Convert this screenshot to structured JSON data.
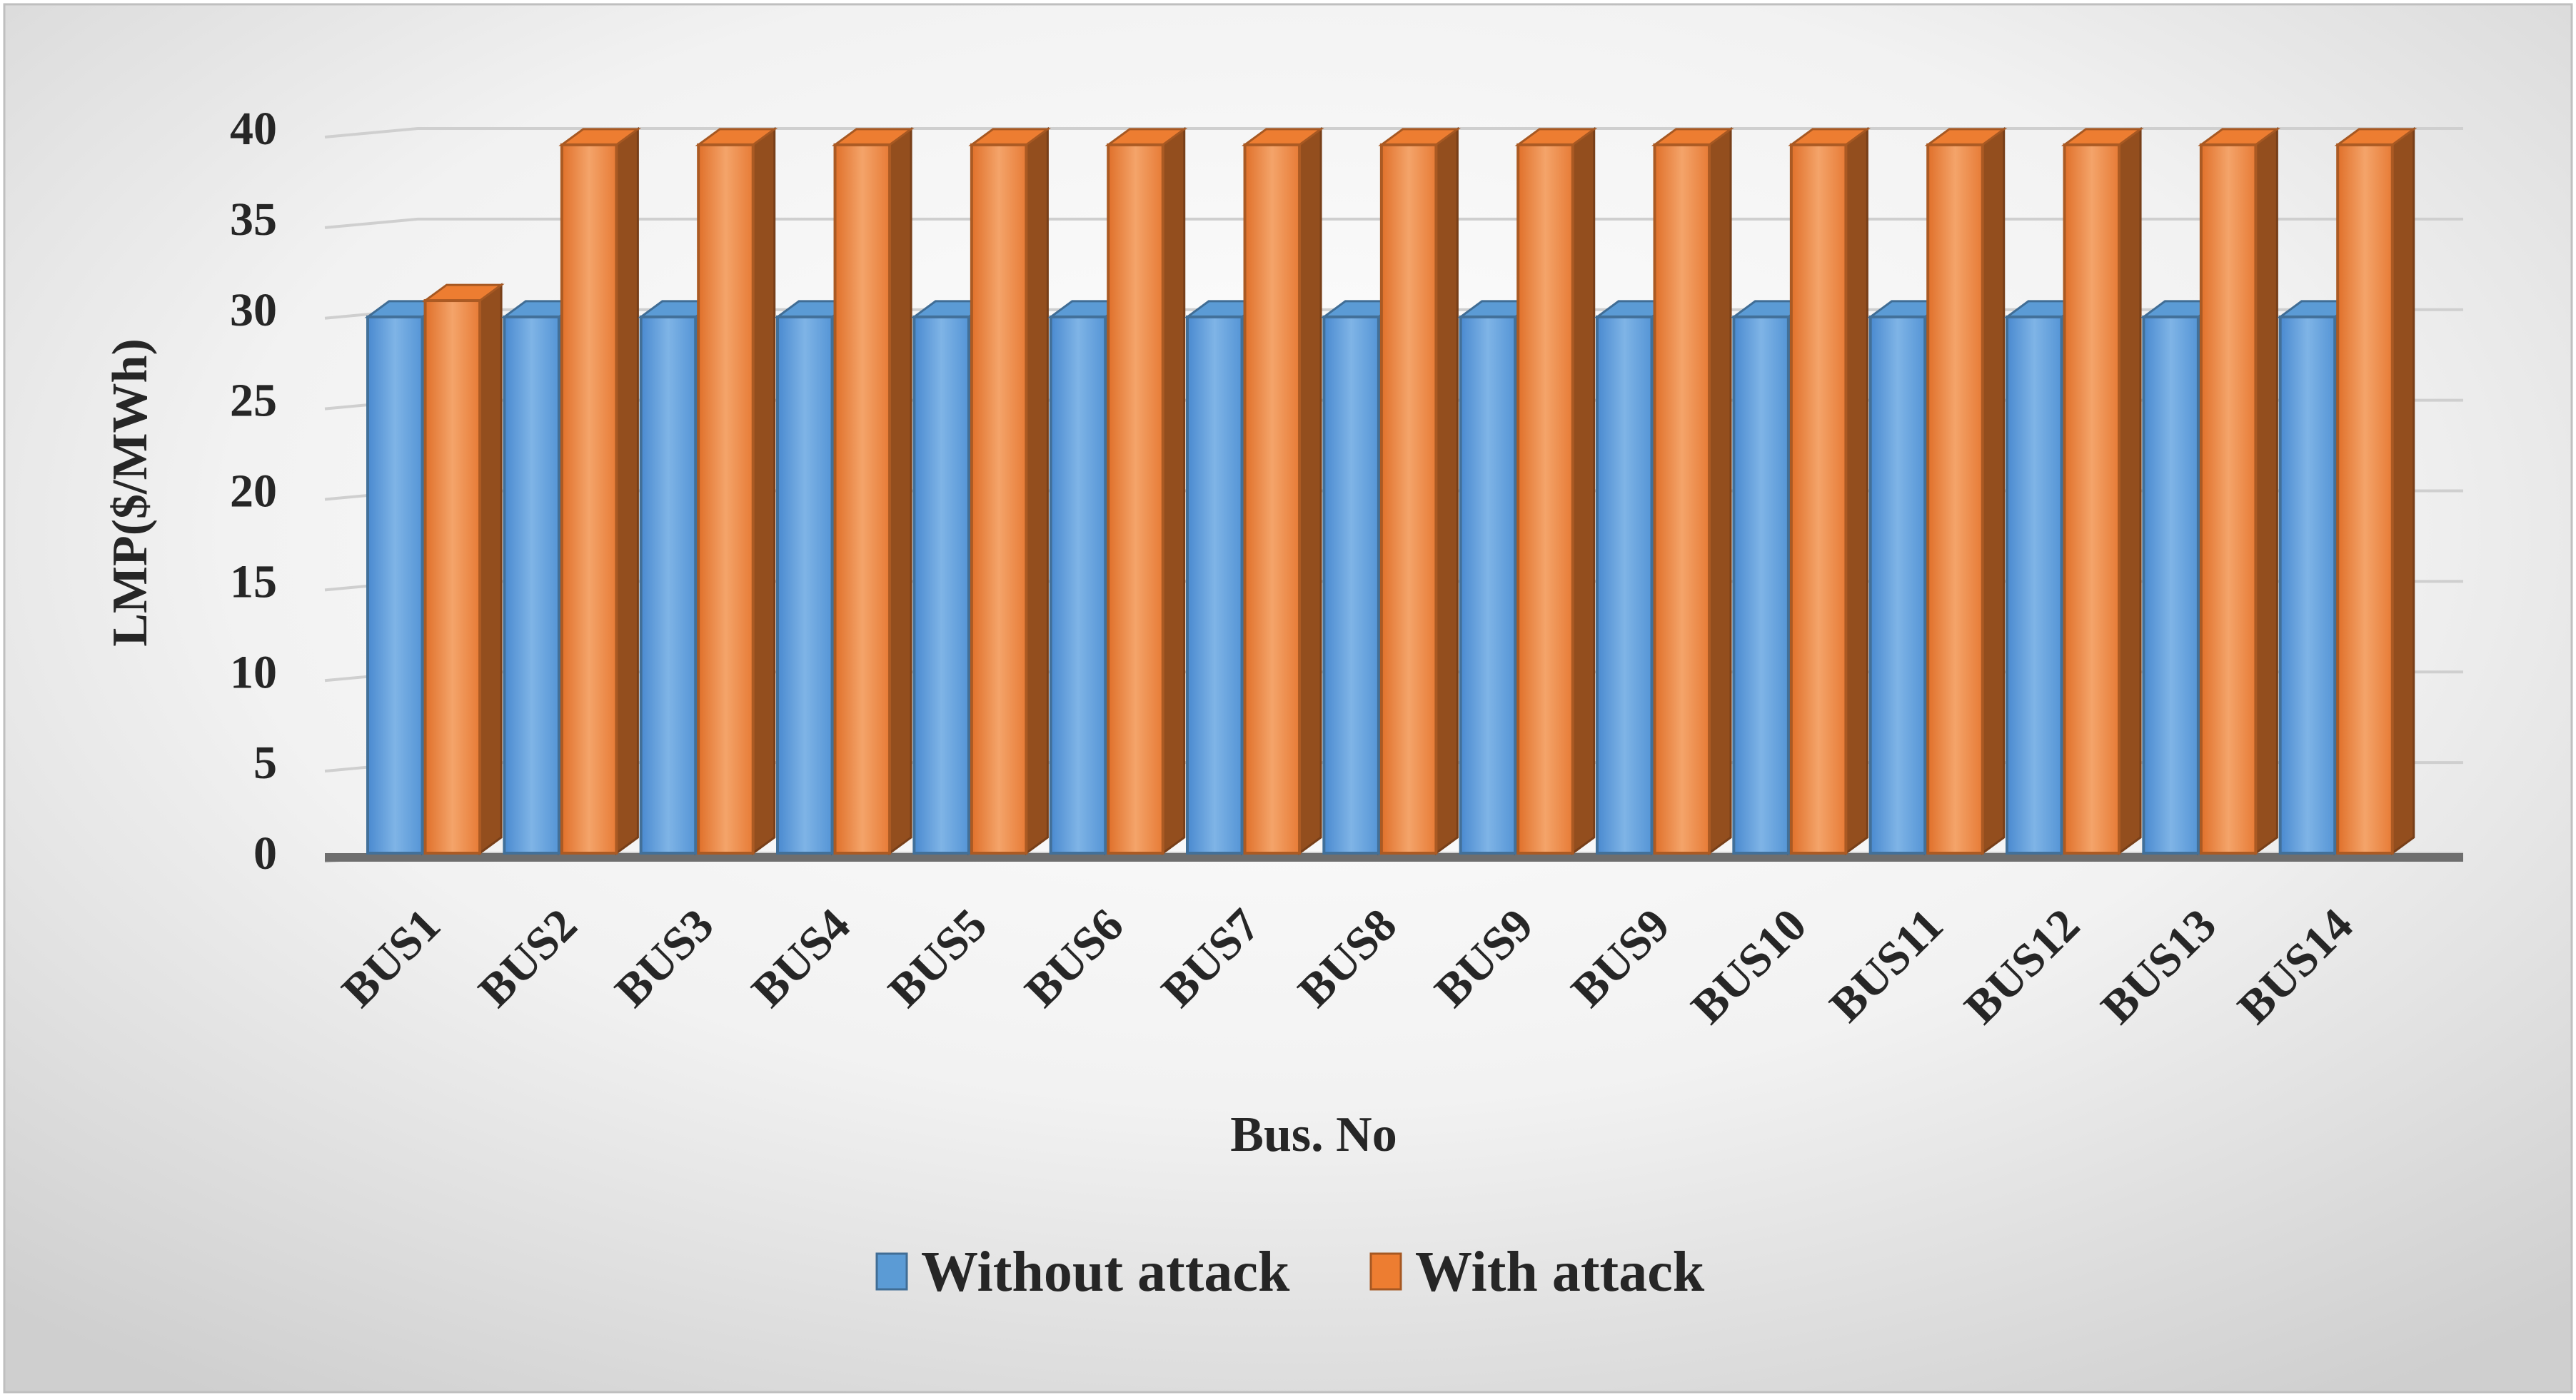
{
  "chart_data": {
    "type": "bar",
    "style": "3d-clustered-column",
    "title": "",
    "xlabel": "Bus. No",
    "ylabel": "LMP($/MWh)",
    "ylim": [
      0,
      40
    ],
    "yticks": [
      0,
      5,
      10,
      15,
      20,
      25,
      30,
      35,
      40
    ],
    "grid": true,
    "legend_position": "bottom",
    "categories": [
      "BUS1",
      "BUS2",
      "BUS3",
      "BUS4",
      "BUS5",
      "BUS6",
      "BUS7",
      "BUS8",
      "BUS9",
      "BUS9",
      "BUS10",
      "BUS11",
      "BUS12",
      "BUS13",
      "BUS14"
    ],
    "series": [
      {
        "name": "Without attack",
        "color": "#5B9BD5",
        "values": [
          29.6,
          29.6,
          29.6,
          29.6,
          29.6,
          29.6,
          29.6,
          29.6,
          29.6,
          29.6,
          29.6,
          29.6,
          29.6,
          29.6,
          29.6
        ]
      },
      {
        "name": "With attack",
        "color": "#ED7D31",
        "values": [
          30.5,
          39.1,
          39.1,
          39.1,
          39.1,
          39.1,
          39.1,
          39.1,
          39.1,
          39.1,
          39.1,
          39.1,
          39.1,
          39.1,
          39.1
        ]
      }
    ]
  }
}
